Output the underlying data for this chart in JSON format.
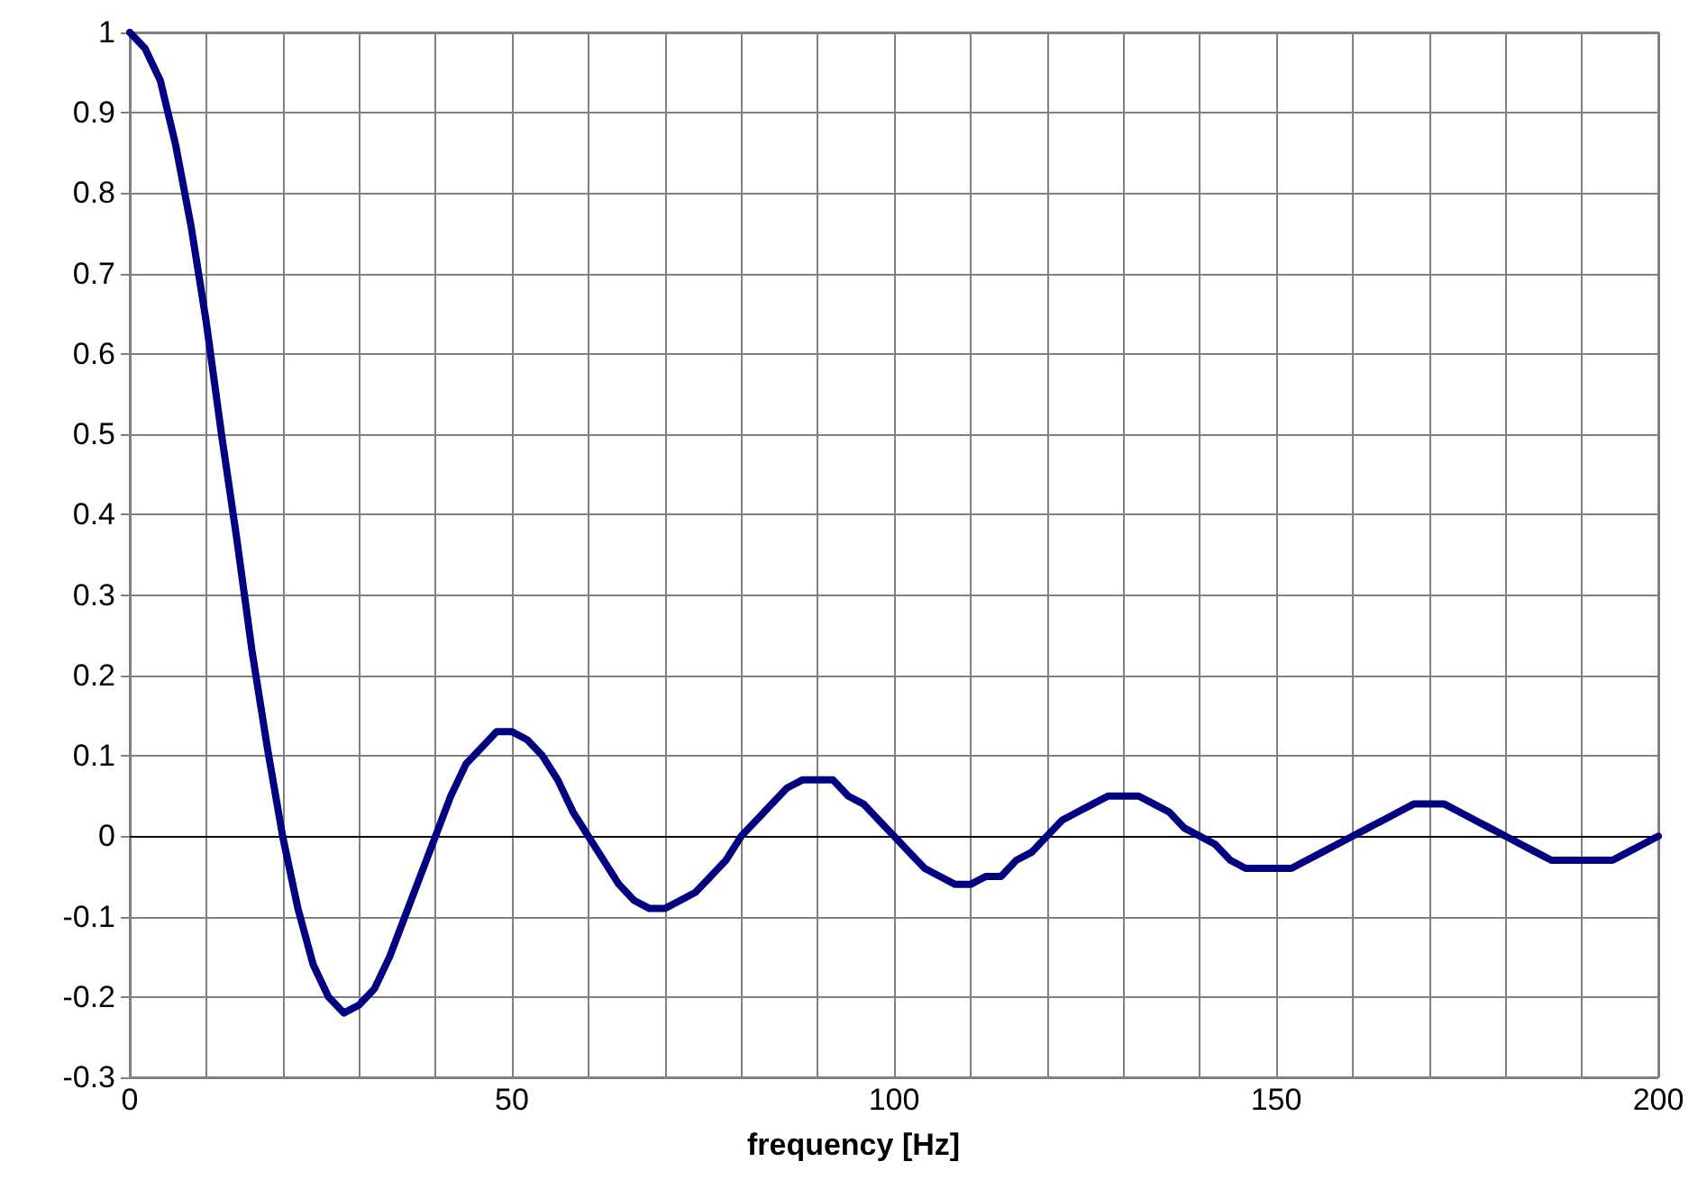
{
  "chart_data": {
    "type": "line",
    "xlabel": "frequency [Hz]",
    "x": [
      0,
      2,
      4,
      6,
      8,
      10,
      12,
      14,
      16,
      18,
      20,
      22,
      24,
      26,
      28,
      30,
      32,
      34,
      36,
      38,
      40,
      42,
      44,
      46,
      48,
      50,
      52,
      54,
      56,
      58,
      60,
      62,
      64,
      66,
      68,
      70,
      72,
      74,
      76,
      78,
      80,
      82,
      84,
      86,
      88,
      90,
      92,
      94,
      96,
      98,
      100,
      102,
      104,
      106,
      108,
      110,
      112,
      114,
      116,
      118,
      120,
      122,
      124,
      126,
      128,
      130,
      132,
      134,
      136,
      138,
      140,
      142,
      144,
      146,
      148,
      150,
      152,
      154,
      156,
      158,
      160,
      162,
      164,
      166,
      168,
      170,
      172,
      174,
      176,
      178,
      180,
      182,
      184,
      186,
      188,
      190,
      192,
      194,
      196,
      198,
      200
    ],
    "series": [
      {
        "color": "#000080",
        "values": [
          1,
          0.98,
          0.94,
          0.86,
          0.76,
          0.64,
          0.5,
          0.37,
          0.23,
          0.11,
          0,
          -0.09,
          -0.16,
          -0.2,
          -0.22,
          -0.21,
          -0.19,
          -0.15,
          -0.1,
          -0.05,
          0,
          0.05,
          0.09,
          0.11,
          0.13,
          0.13,
          0.12,
          0.1,
          0.07,
          0.03,
          0,
          -0.03,
          -0.06,
          -0.08,
          -0.09,
          -0.09,
          -0.08,
          -0.07,
          -0.05,
          -0.03,
          0,
          0.02,
          0.04,
          0.06,
          0.07,
          0.07,
          0.07,
          0.05,
          0.04,
          0.02,
          0,
          -0.02,
          -0.04,
          -0.05,
          -0.06,
          -0.06,
          -0.05,
          -0.05,
          -0.03,
          -0.02,
          0,
          0.02,
          0.03,
          0.04,
          0.05,
          0.05,
          0.05,
          0.04,
          0.03,
          0.01,
          0,
          -0.01,
          -0.03,
          -0.04,
          -0.04,
          -0.04,
          -0.04,
          -0.03,
          -0.02,
          -0.01,
          0,
          0.01,
          0.02,
          0.03,
          0.04,
          0.04,
          0.04,
          0.03,
          0.02,
          0.01,
          0,
          -0.01,
          -0.02,
          -0.03,
          -0.03,
          -0.03,
          -0.03,
          -0.03,
          -0.02,
          -0.01,
          0
        ]
      }
    ],
    "xlim": [
      0,
      200
    ],
    "xticks": [
      0,
      {
        "value": 10,
        "label": null
      },
      {
        "value": 20,
        "label": null
      },
      {
        "value": 30,
        "label": null
      },
      {
        "value": 40,
        "label": null
      },
      50,
      {
        "value": 60,
        "label": null
      },
      {
        "value": 70,
        "label": null
      },
      {
        "value": 80,
        "label": null
      },
      {
        "value": 90,
        "label": null
      },
      100,
      {
        "value": 110,
        "label": null
      },
      {
        "value": 120,
        "label": null
      },
      {
        "value": 130,
        "label": null
      },
      {
        "value": 140,
        "label": null
      },
      150,
      {
        "value": 160,
        "label": null
      },
      {
        "value": 170,
        "label": null
      },
      {
        "value": 180,
        "label": null
      },
      {
        "value": 190,
        "label": null
      },
      200
    ],
    "ylim": [
      -0.3,
      1
    ],
    "yticks": [
      -0.3,
      -0.2,
      -0.1,
      0,
      0.1,
      0.2,
      0.3,
      0.4,
      0.5,
      0.6,
      0.7,
      0.8,
      0.9,
      1
    ],
    "grid": true,
    "marker": "none",
    "line_style": "solid"
  }
}
